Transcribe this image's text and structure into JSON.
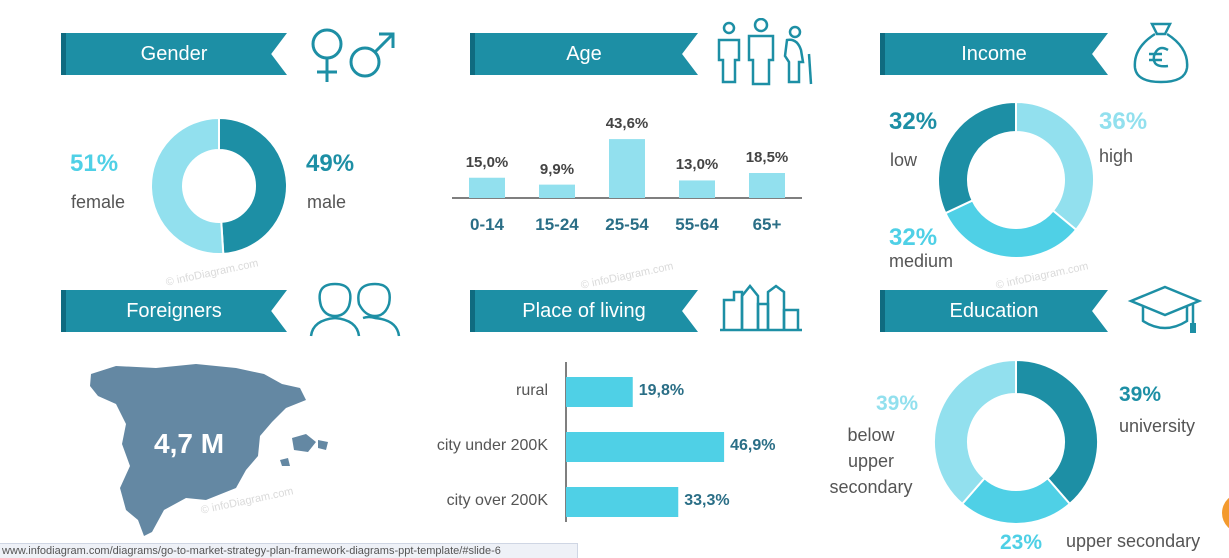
{
  "colors": {
    "dark": "#1d8fa5",
    "mid": "#4fd0e6",
    "light": "#92e0ee",
    "map": "#6488a3",
    "text_dark": "#2a6e86"
  },
  "sections": {
    "gender": {
      "title": "Gender"
    },
    "age": {
      "title": "Age"
    },
    "income": {
      "title": "Income"
    },
    "foreigners": {
      "title": "Foreigners",
      "value": "4,7 M"
    },
    "place": {
      "title": "Place of living"
    },
    "education": {
      "title": "Education"
    }
  },
  "gender_labels": {
    "female_pct": "51%",
    "female": "female",
    "male_pct": "49%",
    "male": "male"
  },
  "income_labels": {
    "low_pct": "32%",
    "low": "low",
    "high_pct": "36%",
    "high": "high",
    "medium_pct": "32%",
    "medium": "medium"
  },
  "education_labels": {
    "university_pct": "39%",
    "university": "university",
    "below_pct": "39%",
    "below_1": "below",
    "below_2": "upper",
    "below_3": "secondary",
    "upper_pct": "23%",
    "upper": "upper secondary"
  },
  "watermark": "© infoDiagram.com",
  "url": "www.infodiagram.com/diagrams/go-to-market-strategy-plan-framework-diagrams-ppt-template/#slide-6",
  "chart_data": [
    {
      "type": "pie",
      "title": "Gender",
      "categories": [
        "female",
        "male"
      ],
      "values": [
        51,
        49
      ]
    },
    {
      "type": "bar",
      "title": "Age",
      "categories": [
        "0-14",
        "15-24",
        "25-54",
        "55-64",
        "65+"
      ],
      "values": [
        15.0,
        9.9,
        43.6,
        13.0,
        18.5
      ],
      "value_labels": [
        "15,0%",
        "9,9%",
        "43,6%",
        "13,0%",
        "18,5%"
      ],
      "ylim": [
        0,
        50
      ]
    },
    {
      "type": "pie",
      "title": "Income",
      "categories": [
        "high",
        "medium",
        "low"
      ],
      "values": [
        36,
        32,
        32
      ]
    },
    {
      "type": "bar",
      "orientation": "horizontal",
      "title": "Place of living",
      "categories": [
        "rural",
        "city under 200K",
        "city over 200K"
      ],
      "values": [
        19.8,
        46.9,
        33.3
      ],
      "value_labels": [
        "19,8%",
        "46,9%",
        "33,3%"
      ],
      "xlim": [
        0,
        50
      ]
    },
    {
      "type": "pie",
      "title": "Education",
      "categories": [
        "university",
        "upper secondary",
        "below upper secondary"
      ],
      "values": [
        39,
        23,
        39
      ]
    }
  ]
}
